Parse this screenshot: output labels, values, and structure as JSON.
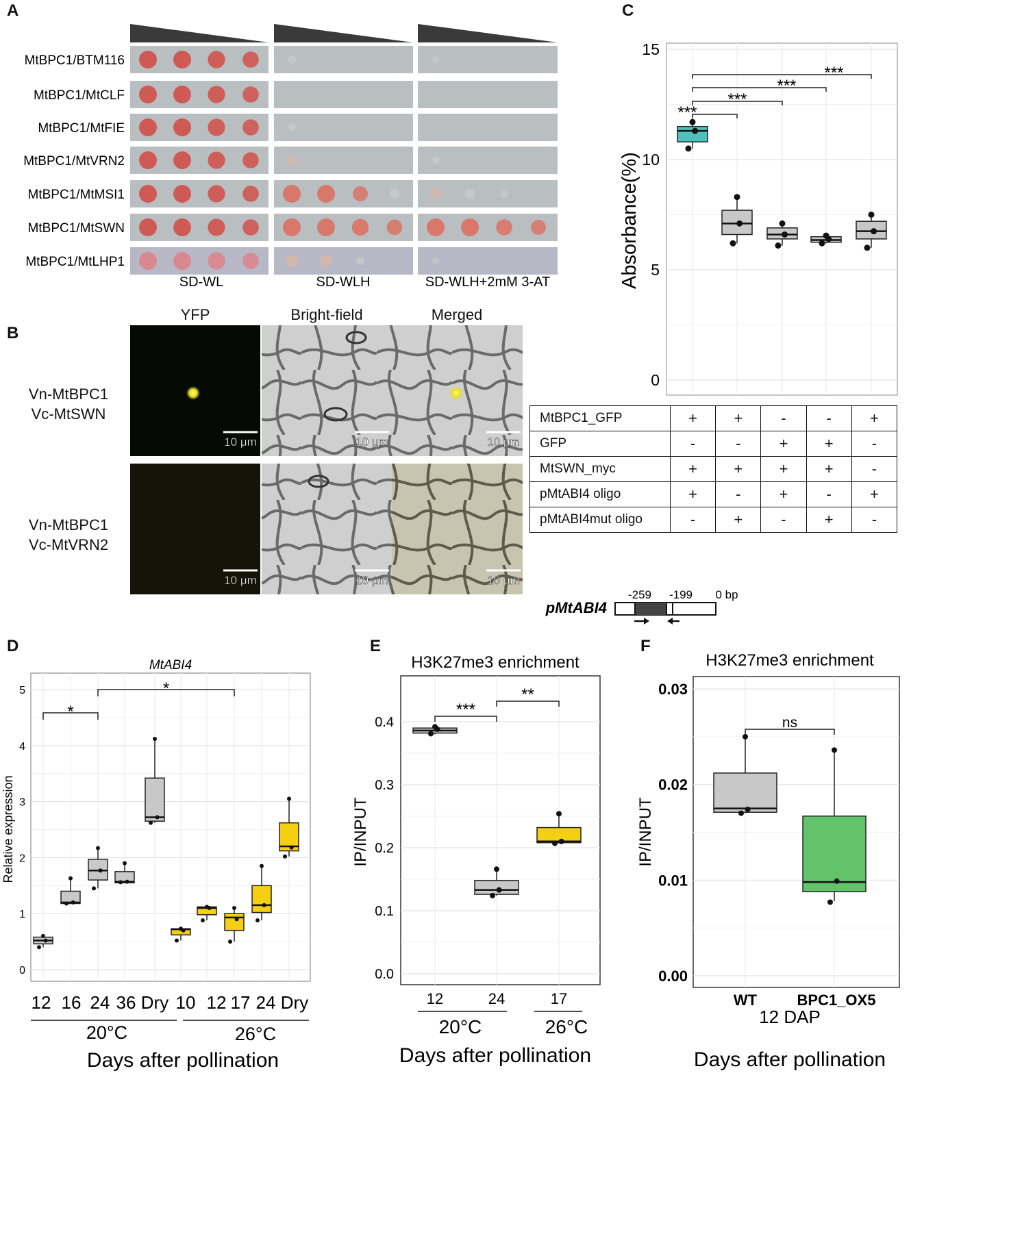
{
  "panel_letters": {
    "a": "A",
    "b": "B",
    "c": "C",
    "d": "D",
    "e": "E",
    "f": "F"
  },
  "panel_a": {
    "rows": [
      "MtBPC1/BTM116",
      "MtBPC1/MtCLF",
      "MtBPC1/MtFIE",
      "MtBPC1/MtVRN2",
      "MtBPC1/MtMSI1",
      "MtBPC1/MtSWN",
      "MtBPC1/MtLHP1"
    ],
    "media": [
      "SD-WL",
      "SD-WLH",
      "SD-WLH+2mM 3-AT"
    ],
    "growth_wlh": [
      [
        0.15,
        0,
        0,
        0
      ],
      [
        0,
        0,
        0,
        0
      ],
      [
        0.1,
        0,
        0,
        0
      ],
      [
        0.35,
        0,
        0,
        0
      ],
      [
        1,
        1,
        0.75,
        0.3
      ],
      [
        1,
        1,
        0.9,
        0.8
      ],
      [
        0.5,
        0.5,
        0.15,
        0
      ]
    ],
    "growth_3at": [
      [
        0.1,
        0,
        0,
        0
      ],
      [
        0,
        0,
        0,
        0
      ],
      [
        0,
        0,
        0,
        0
      ],
      [
        0.1,
        0,
        0,
        0
      ],
      [
        0.4,
        0.3,
        0.1,
        0
      ],
      [
        1,
        1,
        0.85,
        0.75
      ],
      [
        0.05,
        0,
        0,
        0
      ]
    ]
  },
  "panel_b": {
    "columns": [
      "YFP",
      "Bright-field",
      "Merged"
    ],
    "rows": [
      {
        "line1": "Vn-MtBPC1",
        "line2": "Vc-MtSWN"
      },
      {
        "line1": "Vn-MtBPC1",
        "line2": "Vc-MtVRN2"
      }
    ],
    "scale_bar": "10 μm"
  },
  "panel_c": {
    "ylabel": "Absorbance(%)",
    "ticks": [
      "0",
      "5",
      "10",
      "15"
    ],
    "sig": [
      "***",
      "***",
      "***",
      "***"
    ],
    "colors": {
      "first": "#4fc0bc",
      "rest": "#c8c8c8"
    },
    "table": [
      {
        "label": "MtBPC1_GFP",
        "cells": [
          "+",
          "+",
          "-",
          "-",
          "+"
        ]
      },
      {
        "label": "GFP",
        "cells": [
          "-",
          "-",
          "+",
          "+",
          "-"
        ]
      },
      {
        "label": "MtSWN_myc",
        "cells": [
          "+",
          "+",
          "+",
          "+",
          "-"
        ]
      },
      {
        "label": "pMtABI4 oligo",
        "cells": [
          "+",
          "-",
          "+",
          "-",
          "+"
        ]
      },
      {
        "label": "pMtABI4mut oligo",
        "cells": [
          "-",
          "+",
          "-",
          "+",
          "-"
        ]
      }
    ]
  },
  "promoter": {
    "label": "pMtABI4",
    "pos1": "-259",
    "pos2": "-199",
    "pos3": "0 bp"
  },
  "panel_d": {
    "title": "MtABI4",
    "ylabel": "Relative expression",
    "ticks": [
      "0",
      "1",
      "2",
      "3",
      "4",
      "5"
    ],
    "x_labels": [
      "12",
      "16",
      "24",
      "36",
      "Dry",
      "10",
      "12",
      "17",
      "24",
      "Dry"
    ],
    "group1": "20°C",
    "group2": "26°C",
    "xlabel": "Days after pollination",
    "sig": [
      "*",
      "*"
    ]
  },
  "panel_e": {
    "title": "H3K27me3 enrichment",
    "ylabel": "IP/INPUT",
    "ticks": [
      "0.0",
      "0.1",
      "0.2",
      "0.3",
      "0.4"
    ],
    "x_labels": [
      "12",
      "24",
      "17"
    ],
    "group1": "20°C",
    "group2": "26°C",
    "xlabel": "Days after pollination",
    "sig": [
      "***",
      "**"
    ]
  },
  "panel_f": {
    "title": "H3K27me3 enrichment",
    "ylabel": "IP/INPUT",
    "ticks": [
      "0.00",
      "0.01",
      "0.02",
      "0.03"
    ],
    "x_labels": [
      "WT",
      "BPC1_OX5"
    ],
    "sublabel": "12 DAP",
    "xlabel": "Days after pollination",
    "sig": [
      "ns"
    ]
  },
  "chart_data": [
    {
      "type": "box",
      "panel": "C",
      "ylabel": "Absorbance(%)",
      "ylim": [
        0,
        15
      ],
      "grid": true,
      "boxes": [
        {
          "q1": 10.8,
          "median": 11.3,
          "q3": 11.5,
          "min": 10.5,
          "max": 11.7,
          "points": [
            10.5,
            11.3,
            11.7
          ]
        },
        {
          "q1": 6.6,
          "median": 7.1,
          "q3": 7.7,
          "min": 6.2,
          "max": 8.3,
          "points": [
            6.2,
            7.1,
            8.3
          ]
        },
        {
          "q1": 6.4,
          "median": 6.6,
          "q3": 6.9,
          "min": 6.1,
          "max": 7.1,
          "points": [
            6.1,
            6.6,
            7.1
          ]
        },
        {
          "q1": 6.25,
          "median": 6.35,
          "q3": 6.5,
          "min": 6.2,
          "max": 6.55,
          "points": [
            6.2,
            6.4,
            6.55
          ]
        },
        {
          "q1": 6.4,
          "median": 6.75,
          "q3": 7.2,
          "min": 6.0,
          "max": 7.5,
          "points": [
            6.0,
            6.75,
            7.5
          ]
        }
      ]
    },
    {
      "type": "box",
      "panel": "D",
      "title": "MtABI4",
      "ylabel": "Relative expression",
      "xlabel": "Days after pollination",
      "ylim": [
        -0.1,
        5.2
      ],
      "grid": true,
      "categories": [
        "12",
        "16",
        "24",
        "36",
        "Dry",
        "10",
        "12",
        "17",
        "24",
        "Dry"
      ],
      "boxes": [
        {
          "group": "20°C",
          "q1": 0.46,
          "median": 0.52,
          "q3": 0.58,
          "min": 0.4,
          "max": 0.62,
          "points": [
            0.4,
            0.52,
            0.6
          ]
        },
        {
          "group": "20°C",
          "q1": 1.18,
          "median": 1.2,
          "q3": 1.4,
          "min": 1.18,
          "max": 1.62,
          "points": [
            1.18,
            1.2,
            1.63
          ]
        },
        {
          "group": "20°C",
          "q1": 1.6,
          "median": 1.77,
          "q3": 1.97,
          "min": 1.45,
          "max": 2.17,
          "points": [
            1.45,
            1.77,
            2.17
          ]
        },
        {
          "group": "20°C",
          "q1": 1.55,
          "median": 1.57,
          "q3": 1.75,
          "min": 1.55,
          "max": 1.92,
          "points": [
            1.56,
            1.57,
            1.9
          ]
        },
        {
          "group": "20°C",
          "q1": 2.65,
          "median": 2.72,
          "q3": 3.42,
          "min": 2.62,
          "max": 4.12,
          "points": [
            2.62,
            2.72,
            4.12
          ]
        },
        {
          "group": "26°C",
          "q1": 0.62,
          "median": 0.72,
          "q3": 0.73,
          "min": 0.52,
          "max": 0.74,
          "points": [
            0.52,
            0.7,
            0.73
          ]
        },
        {
          "group": "26°C",
          "q1": 0.98,
          "median": 1.1,
          "q3": 1.12,
          "min": 0.88,
          "max": 1.13,
          "points": [
            0.88,
            1.1,
            1.12
          ]
        },
        {
          "group": "26°C",
          "q1": 0.7,
          "median": 0.93,
          "q3": 1.0,
          "min": 0.5,
          "max": 1.1,
          "points": [
            0.5,
            0.9,
            1.1
          ]
        },
        {
          "group": "26°C",
          "q1": 1.02,
          "median": 1.15,
          "q3": 1.5,
          "min": 0.88,
          "max": 1.85,
          "points": [
            0.88,
            1.15,
            1.85
          ]
        },
        {
          "group": "26°C",
          "q1": 2.12,
          "median": 2.2,
          "q3": 2.62,
          "min": 2.02,
          "max": 3.05,
          "points": [
            2.02,
            2.18,
            3.05
          ]
        }
      ]
    },
    {
      "type": "box",
      "panel": "E",
      "title": "H3K27me3 enrichment",
      "ylabel": "IP/INPUT",
      "xlabel": "Days after pollination",
      "ylim": [
        -0.01,
        0.455
      ],
      "grid": true,
      "categories": [
        "12",
        "24",
        "17"
      ],
      "boxes": [
        {
          "group": "20°C",
          "q1": 0.382,
          "median": 0.386,
          "q3": 0.39,
          "min": 0.38,
          "max": 0.392,
          "points": [
            0.381,
            0.388,
            0.392
          ]
        },
        {
          "group": "20°C",
          "q1": 0.126,
          "median": 0.133,
          "q3": 0.148,
          "min": 0.124,
          "max": 0.165,
          "points": [
            0.124,
            0.133,
            0.166
          ]
        },
        {
          "group": "26°C",
          "q1": 0.208,
          "median": 0.21,
          "q3": 0.232,
          "min": 0.207,
          "max": 0.254,
          "points": [
            0.207,
            0.21,
            0.254
          ]
        }
      ]
    },
    {
      "type": "box",
      "panel": "F",
      "title": "H3K27me3 enrichment",
      "ylabel": "IP/INPUT",
      "xlabel": "Days after pollination",
      "ylim": [
        -0.0015,
        0.0315
      ],
      "grid": true,
      "categories": [
        "WT",
        "BPC1_OX5"
      ],
      "boxes": [
        {
          "q1": 0.0171,
          "median": 0.0175,
          "q3": 0.0212,
          "min": 0.017,
          "max": 0.025,
          "points": [
            0.017,
            0.0174,
            0.025
          ]
        },
        {
          "q1": 0.0088,
          "median": 0.0098,
          "q3": 0.0167,
          "min": 0.0078,
          "max": 0.0236,
          "points": [
            0.0077,
            0.0099,
            0.0236
          ]
        }
      ]
    }
  ]
}
